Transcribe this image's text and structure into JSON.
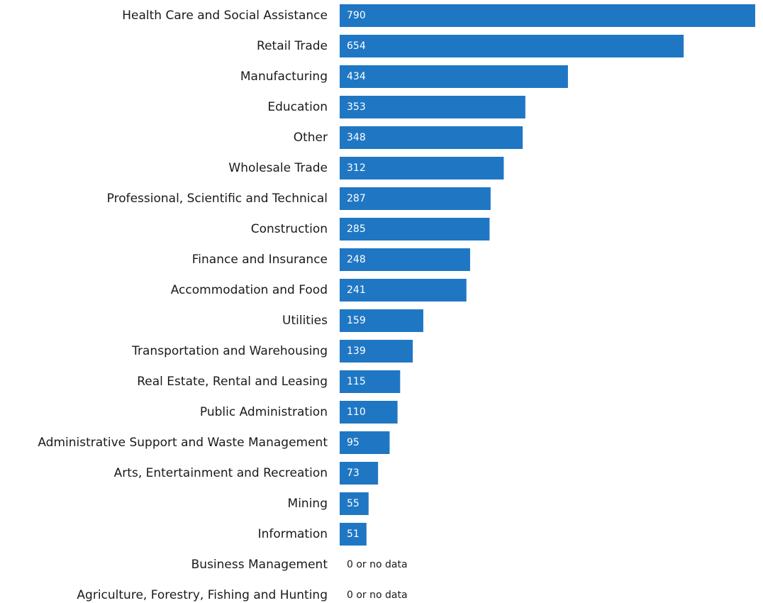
{
  "chart_data": {
    "type": "bar",
    "orientation": "horizontal",
    "categories": [
      "Health Care and Social Assistance",
      "Retail Trade",
      "Manufacturing",
      "Education",
      "Other",
      "Wholesale Trade",
      "Professional, Scientific and Technical",
      "Construction",
      "Finance and Insurance",
      "Accommodation and Food",
      "Utilities",
      "Transportation and Warehousing",
      "Real Estate, Rental and Leasing",
      "Public Administration",
      "Administrative Support and Waste Management",
      "Arts, Entertainment and Recreation",
      "Mining",
      "Information",
      "Business Management",
      "Agriculture, Forestry, Fishing and Hunting"
    ],
    "values": [
      790,
      654,
      434,
      353,
      348,
      312,
      287,
      285,
      248,
      241,
      159,
      139,
      115,
      110,
      95,
      73,
      55,
      51,
      0,
      0
    ],
    "value_labels": [
      "790",
      "654",
      "434",
      "353",
      "348",
      "312",
      "287",
      "285",
      "248",
      "241",
      "159",
      "139",
      "115",
      "110",
      "95",
      "73",
      "55",
      "51",
      "0 or no data",
      "0 or no data"
    ],
    "no_data": [
      false,
      false,
      false,
      false,
      false,
      false,
      false,
      false,
      false,
      false,
      false,
      false,
      false,
      false,
      false,
      false,
      false,
      false,
      true,
      true
    ],
    "xlim": [
      0,
      790
    ],
    "grid": false,
    "legend": "none",
    "bar_color": "#1f77c4",
    "value_label_color": "#ffffff",
    "text_color": "#1a1a1a"
  }
}
